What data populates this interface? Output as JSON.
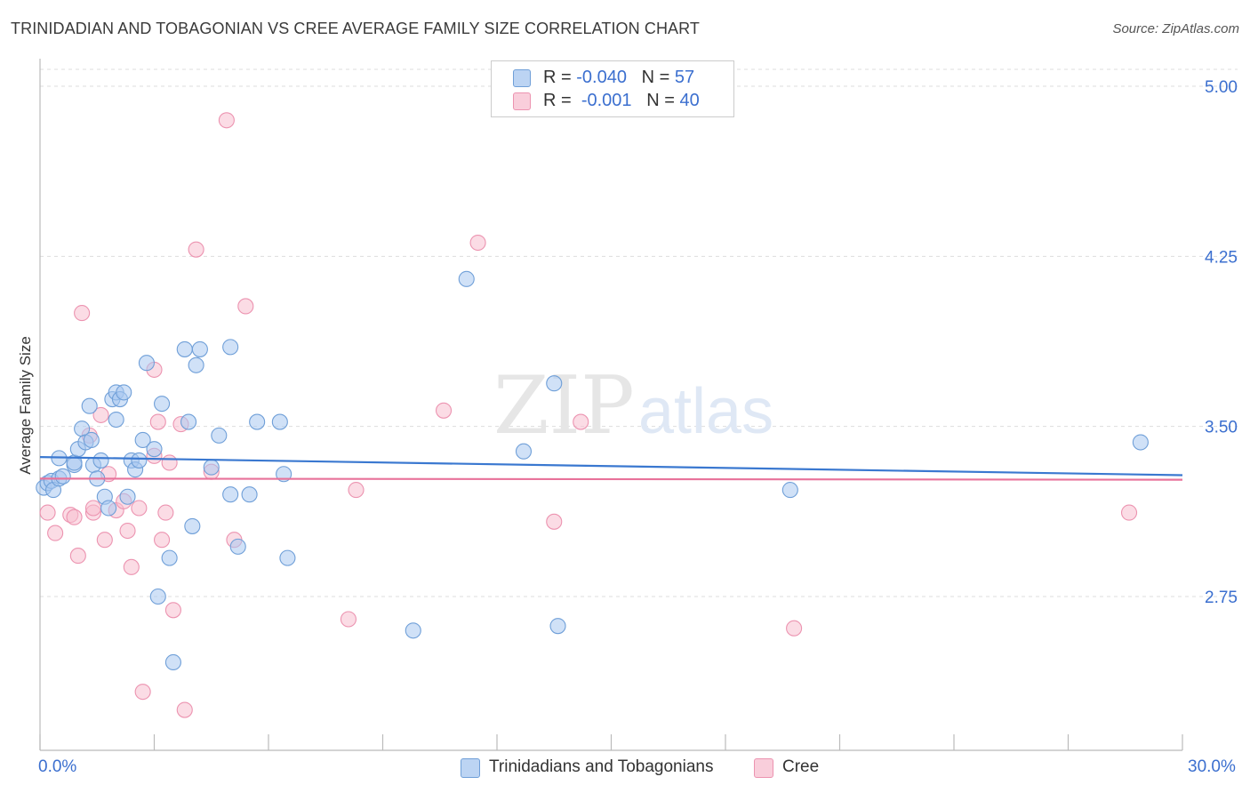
{
  "header": {
    "title": "TRINIDADIAN AND TOBAGONIAN VS CREE AVERAGE FAMILY SIZE CORRELATION CHART",
    "source": "Source: ZipAtlas.com"
  },
  "legend": {
    "series1": {
      "r_label": "R = ",
      "r_value": "-0.040",
      "n_label": "N = ",
      "n_value": "57"
    },
    "series2": {
      "r_label": "R = ",
      "r_value": "-0.001",
      "n_label": "N = ",
      "n_value": "40"
    }
  },
  "watermark": {
    "zip": "ZIP",
    "atlas": "atlas"
  },
  "colors": {
    "blue_fill": "#a9c8f0",
    "blue_stroke": "#6f9fd8",
    "blue_line": "#3a78d0",
    "pink_fill": "#f7bfd0",
    "pink_stroke": "#ec93b0",
    "pink_line": "#e8729a",
    "tick_text": "#3b6fcf",
    "grid": "#dddddd"
  },
  "chart_data": {
    "type": "scatter",
    "title": "TRINIDADIAN AND TOBAGONIAN VS CREE AVERAGE FAMILY SIZE CORRELATION CHART",
    "xlabel": "",
    "ylabel": "Average Family Size",
    "xlim": [
      0,
      30
    ],
    "ylim": [
      2.0,
      5.15
    ],
    "x_tick_labels": {
      "left": "0.0%",
      "right": "30.0%"
    },
    "y_ticks": [
      {
        "value": 5.0,
        "label": "5.00"
      },
      {
        "value": 4.25,
        "label": "4.25"
      },
      {
        "value": 3.5,
        "label": "3.50"
      },
      {
        "value": 2.75,
        "label": "2.75"
      }
    ],
    "series": [
      {
        "name": "Trinidadians and Tobagonians",
        "color": "#a9c8f0",
        "trend": {
          "x": [
            0,
            30
          ],
          "y": [
            3.365,
            3.285
          ]
        },
        "points": [
          [
            0.1,
            3.23
          ],
          [
            0.2,
            3.25
          ],
          [
            0.3,
            3.26
          ],
          [
            0.35,
            3.22
          ],
          [
            0.5,
            3.27
          ],
          [
            0.5,
            3.36
          ],
          [
            0.6,
            3.28
          ],
          [
            0.9,
            3.33
          ],
          [
            0.9,
            3.34
          ],
          [
            1.0,
            3.4
          ],
          [
            1.1,
            3.49
          ],
          [
            1.2,
            3.43
          ],
          [
            1.3,
            3.59
          ],
          [
            1.35,
            3.44
          ],
          [
            1.4,
            3.33
          ],
          [
            1.5,
            3.27
          ],
          [
            1.6,
            3.35
          ],
          [
            1.7,
            3.19
          ],
          [
            1.8,
            3.14
          ],
          [
            1.9,
            3.62
          ],
          [
            2.0,
            3.65
          ],
          [
            2.0,
            3.53
          ],
          [
            2.1,
            3.62
          ],
          [
            2.2,
            3.65
          ],
          [
            2.3,
            3.19
          ],
          [
            2.4,
            3.35
          ],
          [
            2.5,
            3.31
          ],
          [
            2.6,
            3.35
          ],
          [
            2.7,
            3.44
          ],
          [
            2.8,
            3.78
          ],
          [
            3.0,
            3.4
          ],
          [
            3.1,
            2.75
          ],
          [
            3.2,
            3.6
          ],
          [
            3.4,
            2.92
          ],
          [
            3.5,
            2.46
          ],
          [
            3.8,
            3.84
          ],
          [
            3.9,
            3.52
          ],
          [
            4.0,
            3.06
          ],
          [
            4.1,
            3.77
          ],
          [
            4.2,
            3.84
          ],
          [
            4.5,
            3.32
          ],
          [
            4.7,
            3.46
          ],
          [
            5.0,
            3.2
          ],
          [
            5.0,
            3.85
          ],
          [
            5.2,
            2.97
          ],
          [
            5.5,
            3.2
          ],
          [
            5.7,
            3.52
          ],
          [
            6.3,
            3.52
          ],
          [
            6.4,
            3.29
          ],
          [
            6.5,
            2.92
          ],
          [
            9.8,
            2.6
          ],
          [
            11.2,
            4.15
          ],
          [
            12.7,
            3.39
          ],
          [
            13.5,
            3.69
          ],
          [
            13.6,
            2.62
          ],
          [
            19.7,
            3.22
          ],
          [
            28.9,
            3.43
          ]
        ]
      },
      {
        "name": "Cree",
        "color": "#f7bfd0",
        "trend": {
          "x": [
            0,
            30
          ],
          "y": [
            3.27,
            3.265
          ]
        },
        "points": [
          [
            0.2,
            3.12
          ],
          [
            0.4,
            3.03
          ],
          [
            0.8,
            3.11
          ],
          [
            0.9,
            3.1
          ],
          [
            1.0,
            2.93
          ],
          [
            1.1,
            4.0
          ],
          [
            1.3,
            3.46
          ],
          [
            1.4,
            3.12
          ],
          [
            1.4,
            3.14
          ],
          [
            1.6,
            3.55
          ],
          [
            1.7,
            3.0
          ],
          [
            1.8,
            3.29
          ],
          [
            2.0,
            3.13
          ],
          [
            2.2,
            3.17
          ],
          [
            2.3,
            3.04
          ],
          [
            2.4,
            2.88
          ],
          [
            2.6,
            3.14
          ],
          [
            2.7,
            2.33
          ],
          [
            3.0,
            3.37
          ],
          [
            3.0,
            3.75
          ],
          [
            3.1,
            3.52
          ],
          [
            3.2,
            3.0
          ],
          [
            3.3,
            3.12
          ],
          [
            3.4,
            3.34
          ],
          [
            3.5,
            2.69
          ],
          [
            3.7,
            3.51
          ],
          [
            3.8,
            2.25
          ],
          [
            4.1,
            4.28
          ],
          [
            4.5,
            3.3
          ],
          [
            4.9,
            4.85
          ],
          [
            5.1,
            3.0
          ],
          [
            5.4,
            4.03
          ],
          [
            8.1,
            2.65
          ],
          [
            8.3,
            3.22
          ],
          [
            10.6,
            3.57
          ],
          [
            11.5,
            4.31
          ],
          [
            13.5,
            3.08
          ],
          [
            14.2,
            3.52
          ],
          [
            19.8,
            2.61
          ],
          [
            28.6,
            3.12
          ]
        ]
      }
    ]
  },
  "bottom_legend": [
    {
      "label": "Trinidadians and Tobagonians"
    },
    {
      "label": "Cree"
    }
  ]
}
